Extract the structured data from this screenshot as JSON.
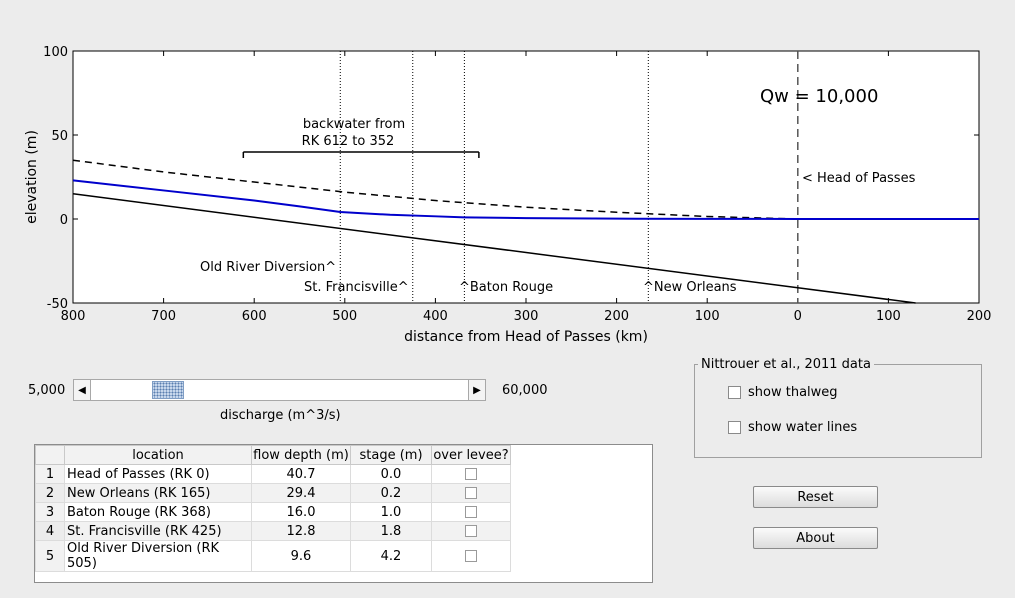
{
  "plot": {
    "xlabel": "distance from Head of Passes (km)",
    "ylabel": "elevation (m)",
    "title_text": "Qw = 10,000",
    "x_ticks": [
      "800",
      "700",
      "600",
      "500",
      "400",
      "300",
      "200",
      "100",
      "0",
      "100",
      "200"
    ],
    "y_ticks": [
      "100",
      "50",
      "0",
      "-50"
    ],
    "backwater_label_line1": "backwater from",
    "backwater_label_line2": "RK 612 to 352",
    "head_of_passes_label": "< Head of Passes",
    "station_labels": {
      "old_river": "Old River Diversion^",
      "st_francisville": "St. Francisville^",
      "baton_rouge": "^Baton Rouge",
      "new_orleans": "^New Orleans"
    },
    "colors": {
      "water": "#0000cc",
      "bed": "#000000",
      "bank": "#000000"
    }
  },
  "chart_data": {
    "type": "line",
    "xlim": [
      800,
      -200
    ],
    "ylim": [
      -50,
      100
    ],
    "stations_km": [
      505,
      425,
      368,
      165
    ],
    "head_of_passes_km": 0,
    "backwater_range_km": [
      612,
      352
    ],
    "series": [
      {
        "style": "solid-black",
        "x": [
          800,
          -130
        ],
        "y": [
          15,
          -50
        ]
      },
      {
        "style": "dashed-black",
        "x": [
          800,
          700,
          600,
          500,
          400,
          300,
          200,
          100,
          0
        ],
        "y": [
          35,
          28,
          22,
          16,
          11,
          7,
          4,
          1.5,
          0
        ]
      },
      {
        "style": "solid-blue",
        "x": [
          800,
          700,
          600,
          550,
          505,
          450,
          400,
          368,
          300,
          200,
          100,
          0,
          -200
        ],
        "y": [
          23,
          17,
          11,
          7.5,
          4.2,
          2.5,
          1.6,
          1.0,
          0.5,
          0.2,
          0.1,
          0,
          0
        ]
      }
    ]
  },
  "slider": {
    "min_label": "5,000",
    "max_label": "60,000",
    "caption": "discharge (m^3/s)",
    "value": 10000,
    "min": 5000,
    "max": 60000
  },
  "table": {
    "headers": [
      "location",
      "flow depth (m)",
      "stage (m)",
      "over levee?"
    ],
    "rows": [
      {
        "n": "1",
        "location": "Head of Passes (RK 0)",
        "depth": "40.7",
        "stage": "0.0"
      },
      {
        "n": "2",
        "location": "New Orleans (RK 165)",
        "depth": "29.4",
        "stage": "0.2"
      },
      {
        "n": "3",
        "location": "Baton Rouge (RK 368)",
        "depth": "16.0",
        "stage": "1.0"
      },
      {
        "n": "4",
        "location": "St. Francisville (RK 425)",
        "depth": "12.8",
        "stage": "1.8"
      },
      {
        "n": "5",
        "location": "Old River Diversion (RK 505)",
        "depth": "9.6",
        "stage": "4.2"
      }
    ]
  },
  "data_panel": {
    "title": "Nittrouer et al., 2011 data",
    "show_thalweg": "show thalweg",
    "show_water_lines": "show water lines"
  },
  "buttons": {
    "reset": "Reset",
    "about": "About"
  }
}
